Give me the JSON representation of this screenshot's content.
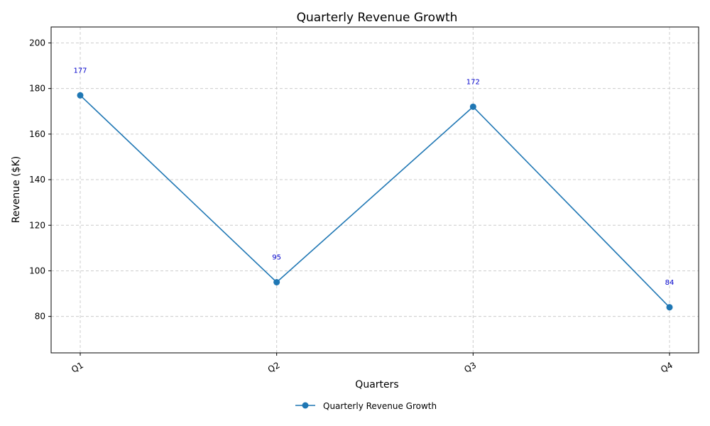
{
  "chart_data": {
    "type": "line",
    "title": "Quarterly Revenue Growth",
    "xlabel": "Quarters",
    "ylabel": "Revenue ($K)",
    "categories": [
      "Q1",
      "Q2",
      "Q3",
      "Q4"
    ],
    "series": [
      {
        "name": "Quarterly Revenue Growth",
        "values": [
          177,
          95,
          172,
          84
        ],
        "color": "#1f77b4"
      }
    ],
    "data_labels": [
      "177",
      "95",
      "172",
      "84"
    ],
    "data_label_color": "#0000cc",
    "ylim": [
      64,
      207
    ],
    "yticks": [
      80,
      100,
      120,
      140,
      160,
      180,
      200
    ],
    "ytick_labels": [
      "80",
      "100",
      "120",
      "140",
      "160",
      "180",
      "200"
    ],
    "grid": true,
    "legend_position": "bottom-center"
  }
}
